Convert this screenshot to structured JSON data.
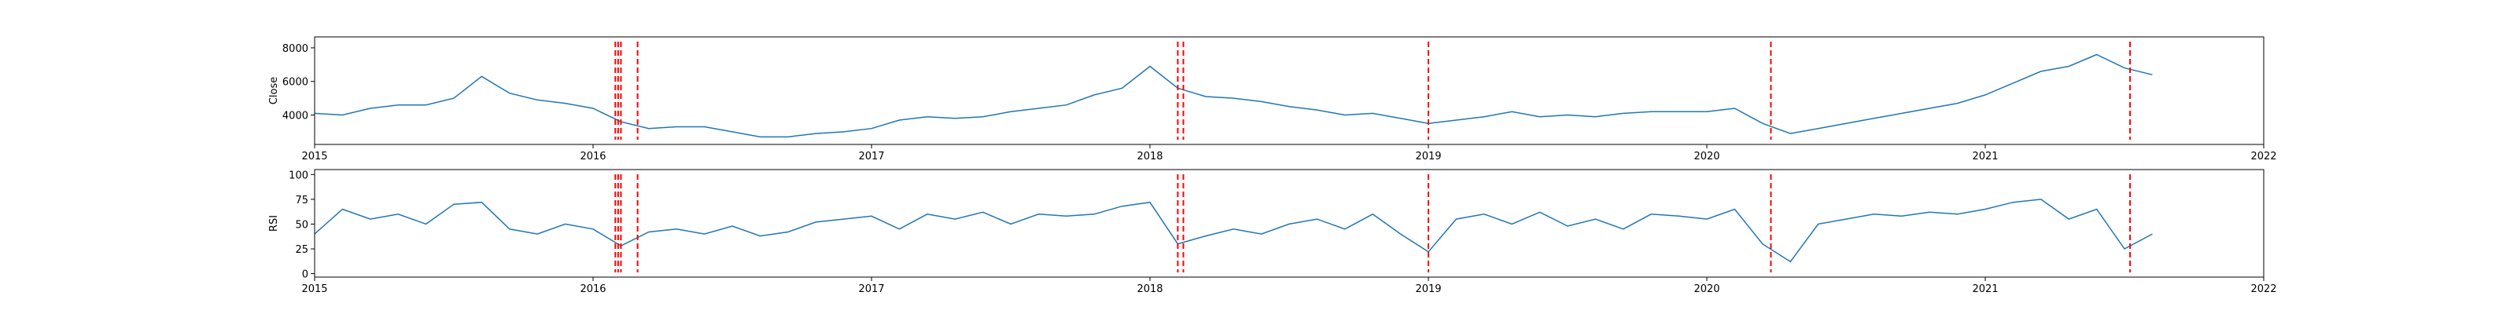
{
  "chart_data": [
    {
      "type": "line",
      "ylabel": "Close",
      "color": "#1f77b4",
      "x": [
        2015.0,
        2015.1,
        2015.2,
        2015.3,
        2015.4,
        2015.5,
        2015.6,
        2015.7,
        2015.8,
        2015.9,
        2016.0,
        2016.1,
        2016.2,
        2016.3,
        2016.4,
        2016.5,
        2016.6,
        2016.7,
        2016.8,
        2016.9,
        2017.0,
        2017.1,
        2017.2,
        2017.3,
        2017.4,
        2017.5,
        2017.6,
        2017.7,
        2017.8,
        2017.9,
        2018.0,
        2018.1,
        2018.2,
        2018.3,
        2018.4,
        2018.5,
        2018.6,
        2018.7,
        2018.8,
        2018.9,
        2019.0,
        2019.1,
        2019.2,
        2019.3,
        2019.4,
        2019.5,
        2019.6,
        2019.7,
        2019.8,
        2019.9,
        2020.0,
        2020.1,
        2020.2,
        2020.3,
        2020.4,
        2020.5,
        2020.6,
        2020.7,
        2020.8,
        2020.9,
        2021.0,
        2021.1,
        2021.2,
        2021.3,
        2021.4,
        2021.5,
        2021.6
      ],
      "values": [
        4100,
        4000,
        4400,
        4600,
        4600,
        5000,
        6300,
        5300,
        4900,
        4700,
        4400,
        3600,
        3200,
        3300,
        3300,
        3000,
        2700,
        2700,
        2900,
        3000,
        3200,
        3700,
        3900,
        3800,
        3900,
        4200,
        4400,
        4600,
        5200,
        5600,
        6900,
        5600,
        5100,
        5000,
        4800,
        4500,
        4300,
        4000,
        4100,
        3800,
        3500,
        3700,
        3900,
        4200,
        3900,
        4000,
        3900,
        4100,
        4200,
        4200,
        4200,
        4400,
        3500,
        2900,
        3200,
        3500,
        3800,
        4100,
        4400,
        4700,
        5200,
        5900,
        6600,
        6900,
        7600,
        6800,
        6400
      ],
      "vlines": [
        2016.08,
        2016.09,
        2016.1,
        2016.16,
        2018.1,
        2018.12,
        2019.0,
        2020.23,
        2021.52
      ],
      "vline_color": "#ff0000",
      "xlim": [
        2015,
        2022
      ],
      "xticks": [
        2015,
        2016,
        2017,
        2018,
        2019,
        2020,
        2021,
        2022
      ],
      "ylim": [
        2250,
        8650
      ],
      "yticks": [
        4000,
        6000,
        8000
      ]
    },
    {
      "type": "line",
      "ylabel": "RSI",
      "color": "#1f77b4",
      "x": [
        2015.0,
        2015.1,
        2015.2,
        2015.3,
        2015.4,
        2015.5,
        2015.6,
        2015.7,
        2015.8,
        2015.9,
        2016.0,
        2016.1,
        2016.2,
        2016.3,
        2016.4,
        2016.5,
        2016.6,
        2016.7,
        2016.8,
        2016.9,
        2017.0,
        2017.1,
        2017.2,
        2017.3,
        2017.4,
        2017.5,
        2017.6,
        2017.7,
        2017.8,
        2017.9,
        2018.0,
        2018.1,
        2018.2,
        2018.3,
        2018.4,
        2018.5,
        2018.6,
        2018.7,
        2018.8,
        2018.9,
        2019.0,
        2019.1,
        2019.2,
        2019.3,
        2019.4,
        2019.5,
        2019.6,
        2019.7,
        2019.8,
        2019.9,
        2020.0,
        2020.1,
        2020.2,
        2020.3,
        2020.4,
        2020.5,
        2020.6,
        2020.7,
        2020.8,
        2020.9,
        2021.0,
        2021.1,
        2021.2,
        2021.3,
        2021.4,
        2021.5,
        2021.6
      ],
      "values": [
        40,
        65,
        55,
        60,
        50,
        70,
        72,
        45,
        40,
        50,
        45,
        28,
        42,
        45,
        40,
        48,
        38,
        42,
        52,
        55,
        58,
        45,
        60,
        55,
        62,
        50,
        60,
        58,
        60,
        68,
        72,
        30,
        38,
        45,
        40,
        50,
        55,
        45,
        60,
        40,
        22,
        55,
        60,
        50,
        62,
        48,
        55,
        45,
        60,
        58,
        55,
        65,
        30,
        12,
        50,
        55,
        60,
        58,
        62,
        60,
        65,
        72,
        75,
        55,
        65,
        25,
        40
      ],
      "vlines": [
        2016.08,
        2016.09,
        2016.1,
        2016.16,
        2018.1,
        2018.12,
        2019.0,
        2020.23,
        2021.52
      ],
      "vline_color": "#ff0000",
      "xlim": [
        2015,
        2022
      ],
      "xticks": [
        2015,
        2016,
        2017,
        2018,
        2019,
        2020,
        2021,
        2022
      ],
      "ylim": [
        -3.5,
        105
      ],
      "yticks": [
        0,
        25,
        50,
        75,
        100
      ]
    }
  ]
}
